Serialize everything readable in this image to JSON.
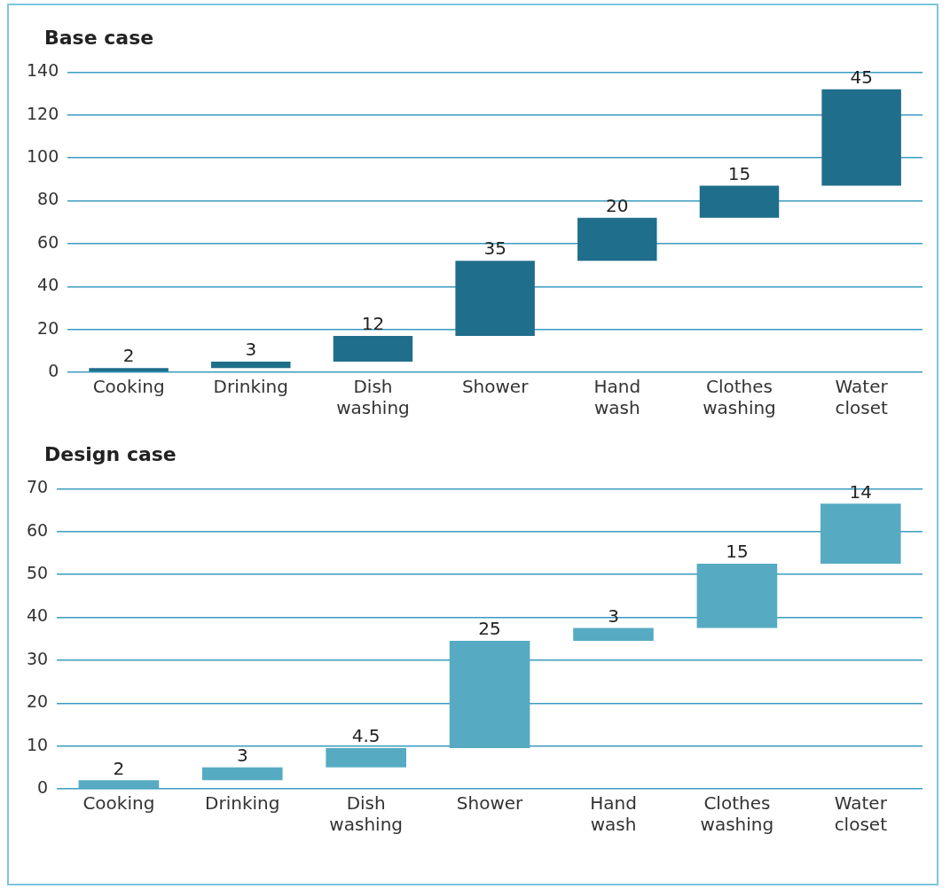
{
  "chart_data": [
    {
      "type": "bar",
      "title": "Base case",
      "categories": [
        "Cooking",
        "Drinking",
        "Dish washing",
        "Shower",
        "Hand wash",
        "Clothes washing",
        "Water closet"
      ],
      "values": [
        2,
        3,
        12,
        35,
        20,
        15,
        45
      ],
      "base": [
        0,
        2,
        5,
        17,
        52,
        72,
        87
      ],
      "color": "#1f6e8c",
      "data_labels": true,
      "ylim": [
        0,
        140
      ],
      "yticks": [
        0,
        20,
        40,
        60,
        80,
        100,
        120,
        140
      ],
      "grid": "y",
      "legend": false
    },
    {
      "type": "bar",
      "title": "Design case",
      "categories": [
        "Cooking",
        "Drinking",
        "Dish washing",
        "Shower",
        "Hand wash",
        "Clothes washing",
        "Water closet"
      ],
      "values": [
        2,
        3,
        4.5,
        25,
        3,
        15,
        14
      ],
      "base": [
        0,
        2,
        5,
        9.5,
        34.5,
        37.5,
        52.5
      ],
      "color": "#56abc2",
      "data_labels": true,
      "ylim": [
        0,
        70
      ],
      "yticks": [
        0,
        10,
        20,
        30,
        40,
        50,
        60,
        70
      ],
      "grid": "y",
      "legend": false
    }
  ]
}
